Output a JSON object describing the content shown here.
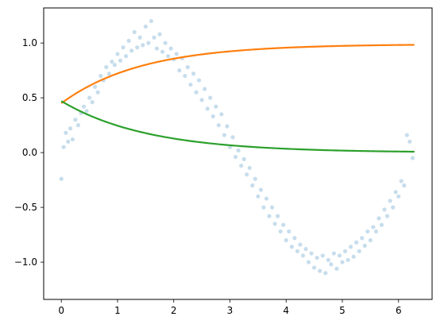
{
  "chart_data": {
    "type": "line",
    "title": "",
    "xlabel": "",
    "ylabel": "",
    "xlim": [
      -0.314,
      6.597
    ],
    "ylim": [
      -1.34,
      1.32
    ],
    "grid": false,
    "x_ticks": [
      0,
      1,
      2,
      3,
      4,
      5,
      6
    ],
    "x_tick_labels": [
      "0",
      "1",
      "2",
      "3",
      "4",
      "5",
      "6"
    ],
    "y_ticks": [
      -1.0,
      -0.5,
      0.0,
      0.5,
      1.0
    ],
    "y_tick_labels": [
      "−1.0",
      "−0.5",
      "0.0",
      "0.5",
      "1.0"
    ],
    "colors": {
      "scatter": "#1f77b4",
      "line_1": "#ff7f0e",
      "line_2": "#2ca02c"
    },
    "scatter": {
      "marker_opacity": 0.25,
      "description_of_values": "noisy samples of sin(x) over x in [0, 2π]",
      "x": [
        0.0,
        0.04,
        0.08,
        0.12,
        0.16,
        0.2,
        0.25,
        0.3,
        0.35,
        0.4,
        0.45,
        0.5,
        0.55,
        0.6,
        0.65,
        0.7,
        0.75,
        0.8,
        0.85,
        0.9,
        0.95,
        1.0,
        1.05,
        1.1,
        1.15,
        1.2,
        1.25,
        1.3,
        1.35,
        1.4,
        1.45,
        1.5,
        1.55,
        1.6,
        1.65,
        1.7,
        1.75,
        1.8,
        1.85,
        1.9,
        1.95,
        2.0,
        2.05,
        2.1,
        2.15,
        2.2,
        2.25,
        2.3,
        2.35,
        2.4,
        2.45,
        2.5,
        2.55,
        2.6,
        2.65,
        2.7,
        2.75,
        2.8,
        2.85,
        2.9,
        2.95,
        3.0,
        3.05,
        3.1,
        3.15,
        3.2,
        3.25,
        3.3,
        3.35,
        3.4,
        3.45,
        3.5,
        3.55,
        3.6,
        3.65,
        3.7,
        3.75,
        3.8,
        3.85,
        3.9,
        3.95,
        4.0,
        4.05,
        4.1,
        4.15,
        4.2,
        4.25,
        4.3,
        4.35,
        4.4,
        4.45,
        4.5,
        4.55,
        4.6,
        4.65,
        4.7,
        4.75,
        4.8,
        4.85,
        4.9,
        4.95,
        5.0,
        5.05,
        5.1,
        5.15,
        5.2,
        5.25,
        5.3,
        5.35,
        5.4,
        5.45,
        5.5,
        5.55,
        5.6,
        5.65,
        5.7,
        5.75,
        5.8,
        5.85,
        5.9,
        5.95,
        6.0,
        6.05,
        6.1,
        6.15,
        6.2,
        6.25
      ],
      "y": [
        -0.24,
        0.05,
        0.18,
        0.1,
        0.22,
        0.12,
        0.3,
        0.25,
        0.36,
        0.42,
        0.38,
        0.5,
        0.46,
        0.6,
        0.55,
        0.7,
        0.66,
        0.78,
        0.72,
        0.83,
        0.8,
        0.9,
        0.84,
        0.96,
        0.88,
        1.02,
        0.93,
        1.1,
        0.96,
        1.05,
        0.98,
        1.15,
        1.0,
        1.2,
        1.05,
        0.95,
        1.08,
        0.92,
        1.0,
        0.88,
        0.95,
        0.85,
        0.9,
        0.75,
        0.86,
        0.7,
        0.78,
        0.62,
        0.72,
        0.55,
        0.66,
        0.48,
        0.58,
        0.4,
        0.5,
        0.33,
        0.42,
        0.25,
        0.35,
        0.16,
        0.24,
        0.05,
        0.14,
        -0.04,
        0.02,
        -0.12,
        -0.06,
        -0.2,
        -0.14,
        -0.3,
        -0.24,
        -0.4,
        -0.34,
        -0.5,
        -0.42,
        -0.58,
        -0.5,
        -0.65,
        -0.58,
        -0.72,
        -0.66,
        -0.8,
        -0.72,
        -0.86,
        -0.78,
        -0.9,
        -0.84,
        -0.94,
        -0.88,
        -1.0,
        -0.92,
        -1.05,
        -0.96,
        -1.08,
        -0.94,
        -1.1,
        -0.98,
        -1.02,
        -0.92,
        -1.06,
        -0.94,
        -1.0,
        -0.9,
        -0.98,
        -0.86,
        -0.95,
        -0.82,
        -0.9,
        -0.78,
        -0.85,
        -0.72,
        -0.8,
        -0.68,
        -0.72,
        -0.6,
        -0.66,
        -0.52,
        -0.58,
        -0.44,
        -0.5,
        -0.36,
        -0.4,
        -0.26,
        -0.3,
        0.16,
        0.1,
        -0.05
      ]
    },
    "series": [
      {
        "x_start": 0,
        "x_end": 6.283,
        "function": "logistic",
        "start_value": 0.45,
        "end_value": 0.99
      },
      {
        "x_start": 0,
        "x_end": 6.283,
        "function": "decay",
        "start_value": 0.47,
        "end_value": 0.0
      }
    ]
  }
}
